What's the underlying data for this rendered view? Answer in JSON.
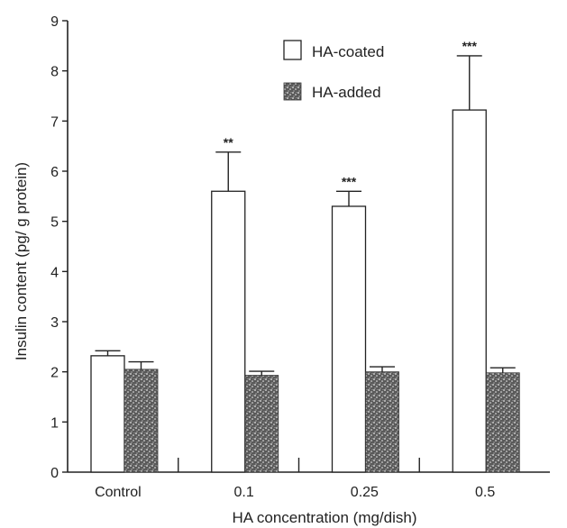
{
  "chart_data": {
    "type": "bar",
    "title": "",
    "xlabel": "HA concentration (mg/dish)",
    "ylabel": "Insulin content (pg/ g protein)",
    "ylim": [
      0,
      9
    ],
    "yticks": [
      0,
      1,
      2,
      3,
      4,
      5,
      6,
      7,
      8,
      9
    ],
    "categories": [
      "Control",
      "0.1",
      "0.25",
      "0.5"
    ],
    "legend_position": "top-center",
    "grid": false,
    "series": [
      {
        "name": "HA-coated",
        "fill": "#ffffff",
        "values": [
          2.32,
          5.6,
          5.3,
          7.22
        ],
        "errors": [
          0.1,
          0.78,
          0.3,
          1.08
        ],
        "significance": [
          "",
          "**",
          "***",
          "***"
        ]
      },
      {
        "name": "HA-added",
        "fill": "#6e6e6e",
        "values": [
          2.05,
          1.93,
          2.0,
          1.98
        ],
        "errors": [
          0.15,
          0.08,
          0.1,
          0.1
        ],
        "significance": [
          "",
          "",
          "",
          ""
        ]
      }
    ]
  }
}
